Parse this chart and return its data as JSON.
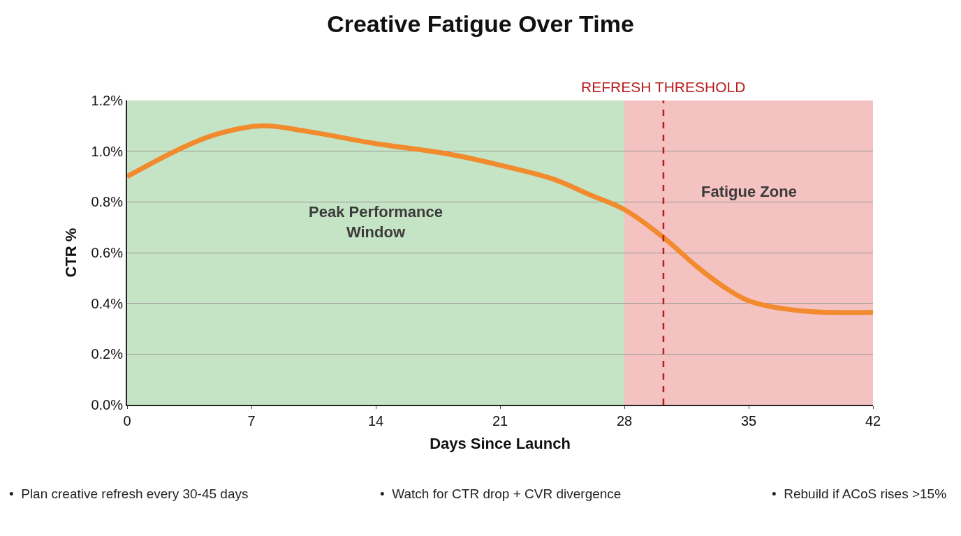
{
  "chart_data": {
    "type": "line",
    "title": "Creative Fatigue Over Time",
    "xlabel": "Days Since Launch",
    "ylabel": "CTR %",
    "x": [
      0,
      3,
      5,
      7.6,
      10,
      14,
      18,
      21,
      24,
      26,
      28,
      30.2,
      32,
      33.5,
      35,
      38,
      42
    ],
    "series": [
      {
        "color": "#f28a2e",
        "values": [
          0.9,
          1.01,
          1.066,
          1.1,
          1.08,
          1.03,
          0.99,
          0.945,
          0.89,
          0.83,
          0.77,
          0.66,
          0.55,
          0.47,
          0.41,
          0.37,
          0.365
        ]
      }
    ],
    "xlim": [
      0,
      42
    ],
    "xticks": [
      0,
      7,
      14,
      21,
      28,
      35,
      42
    ],
    "ylim": [
      0,
      1.2
    ],
    "yticks": [
      {
        "value": 0,
        "label": "0.0%"
      },
      {
        "value": 0.2,
        "label": "0.2%"
      },
      {
        "value": 0.4,
        "label": "0.4%"
      },
      {
        "value": 0.6,
        "label": "0.6%"
      },
      {
        "value": 0.8,
        "label": "0.8%"
      },
      {
        "value": 1.0,
        "label": "1.0%"
      },
      {
        "value": 1.2,
        "label": "1.2%"
      }
    ],
    "bands": [
      {
        "axis": "x",
        "from": 0,
        "to": 28,
        "label": "Peak Performance Window",
        "color": "#c5e3c5"
      },
      {
        "axis": "x",
        "from": 28,
        "to": 42,
        "label": "Fatigue Zone",
        "color": "#f4c2c0"
      }
    ],
    "ref_lines": [
      {
        "axis": "x",
        "value": 30.2,
        "label": "REFRESH THRESHOLD",
        "color": "#b81c1c",
        "line_style": "dashed"
      }
    ],
    "annotations": [
      "•  Plan creative refresh every 30-45 days",
      "•  Watch for CTR drop + CVR divergence",
      "•  Rebuild if ACoS rises >15%"
    ],
    "grid": "y",
    "marker": "none",
    "line_style": "solid"
  }
}
